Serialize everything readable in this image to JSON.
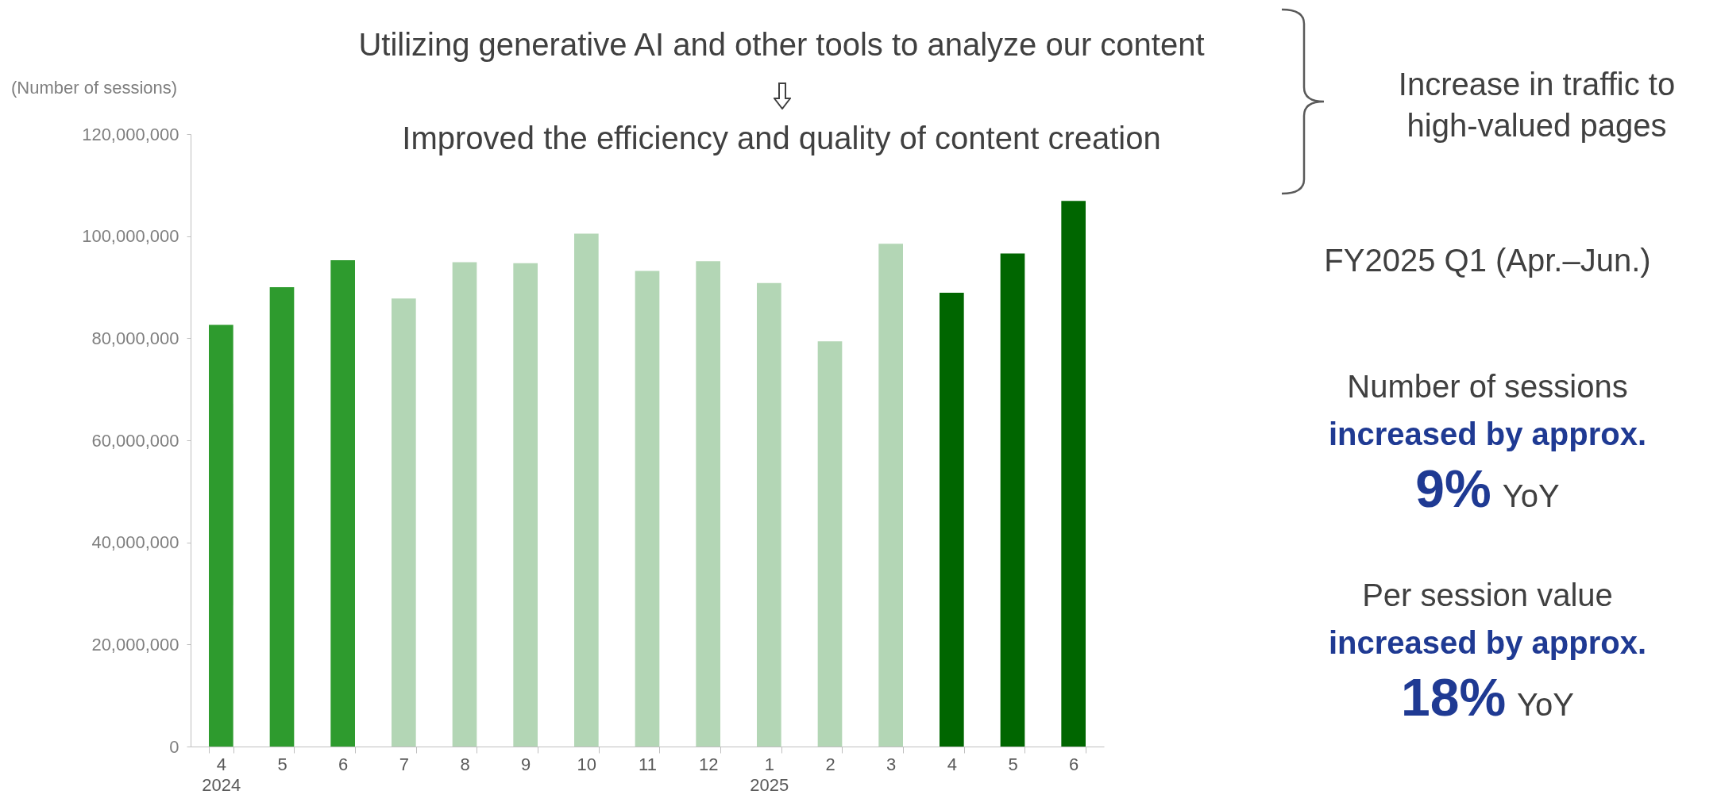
{
  "chart_data": {
    "type": "bar",
    "ylabel": "(Number of sessions)",
    "categories": [
      "4\n2024",
      "5",
      "6",
      "7",
      "8",
      "9",
      "10",
      "11",
      "12",
      "1\n2025",
      "2",
      "3",
      "4",
      "5",
      "6"
    ],
    "values": [
      82600000,
      90000000,
      95300000,
      87800000,
      94900000,
      94700000,
      100500000,
      93200000,
      95100000,
      90800000,
      79400000,
      98500000,
      88900000,
      96600000,
      106900000
    ],
    "colors": [
      "#2e9b2e",
      "#2e9b2e",
      "#2e9b2e",
      "#b3d6b5",
      "#b3d6b5",
      "#b3d6b5",
      "#b3d6b5",
      "#b3d6b5",
      "#b3d6b5",
      "#b3d6b5",
      "#b3d6b5",
      "#b3d6b5",
      "#006600",
      "#006600",
      "#006600"
    ],
    "ylim": [
      0,
      120000000
    ],
    "yticks": [
      {
        "value": 0,
        "label": "0"
      },
      {
        "value": 20000000,
        "label": "20,000,000"
      },
      {
        "value": 40000000,
        "label": "40,000,000"
      },
      {
        "value": 60000000,
        "label": "60,000,000"
      },
      {
        "value": 80000000,
        "label": "80,000,000"
      },
      {
        "value": 100000000,
        "label": "100,000,000"
      },
      {
        "value": 120000000,
        "label": "120,000,000"
      }
    ],
    "grid": false,
    "annotations": [
      "Utilizing generative AI and other tools to analyze our content",
      "Improved the efficiency and quality of content creation",
      "Increase in traffic to high-valued pages",
      "FY2025 Q1 (Apr.–Jun.)",
      "Number of sessions",
      "increased by approx.",
      "9% YoY",
      "Per session value",
      "increased by approx.",
      "18% YoY"
    ]
  }
}
